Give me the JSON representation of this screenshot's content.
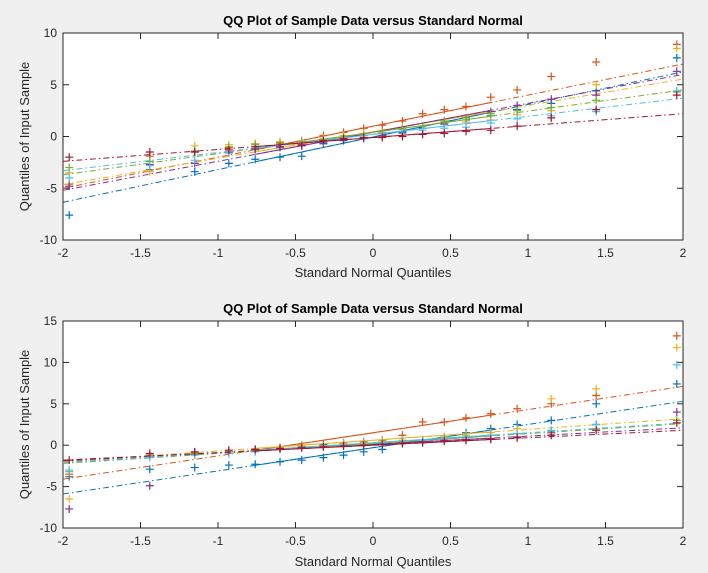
{
  "chart_data": [
    {
      "type": "scatter",
      "title": "QQ Plot of Sample Data versus Standard Normal",
      "xlabel": "Standard Normal Quantiles",
      "ylabel": "Quantiles of Input Sample",
      "xlim": [
        -2,
        2
      ],
      "ylim": [
        -10,
        10
      ],
      "xticks": [
        "-2",
        "-1.5",
        "-1",
        "-0.5",
        "0",
        "0.5",
        "1",
        "1.5",
        "2"
      ],
      "yticks": [
        "-10",
        "-5",
        "0",
        "5",
        "10"
      ],
      "x": [
        -1.96,
        -1.44,
        -1.15,
        -0.93,
        -0.76,
        -0.6,
        -0.46,
        -0.32,
        -0.19,
        -0.06,
        0.06,
        0.19,
        0.32,
        0.46,
        0.6,
        0.76,
        0.93,
        1.15,
        1.44,
        1.96
      ],
      "series": [
        {
          "color": "#0072BD",
          "values": [
            -7.6,
            -3.2,
            -3.4,
            -2.6,
            -2.2,
            -2.0,
            -1.9,
            -0.7,
            -0.4,
            -0.2,
            0.1,
            0.5,
            0.8,
            1.2,
            1.6,
            2.0,
            2.6,
            3.2,
            4.4,
            7.6
          ],
          "fit": [
            -0.05,
            3.15
          ]
        },
        {
          "color": "#D95319",
          "values": [
            -4.6,
            -1.9,
            -1.5,
            -1.1,
            -0.7,
            -0.6,
            -0.4,
            0.1,
            0.4,
            0.8,
            1.1,
            1.5,
            2.2,
            2.6,
            2.9,
            3.8,
            4.5,
            5.8,
            7.2,
            8.9
          ],
          "fit": [
            1.0,
            3.0
          ]
        },
        {
          "color": "#EDB120",
          "values": [
            -3.5,
            -3.4,
            -0.9,
            -0.8,
            -0.7,
            -0.5,
            -0.4,
            -0.2,
            0.1,
            0.3,
            0.4,
            0.9,
            1.0,
            1.3,
            1.4,
            1.6,
            2.1,
            2.5,
            5.0,
            8.5
          ],
          "fit": [
            0.45,
            2.55
          ]
        },
        {
          "color": "#7E2F8E",
          "values": [
            -4.8,
            -2.7,
            -2.6,
            -1.5,
            -1.0,
            -1.0,
            -0.8,
            -0.6,
            -0.3,
            -0.2,
            0.1,
            0.4,
            0.8,
            1.2,
            1.8,
            2.4,
            3.0,
            3.6,
            4.0,
            6.3
          ],
          "fit": [
            0.4,
            2.8
          ]
        },
        {
          "color": "#77AC30",
          "values": [
            -3.0,
            -2.4,
            -1.4,
            -1.0,
            -0.8,
            -0.7,
            -0.5,
            -0.4,
            -0.1,
            0.1,
            0.3,
            0.7,
            1.0,
            1.5,
            1.8,
            2.2,
            2.5,
            2.8,
            3.5,
            4.3
          ],
          "fit": [
            0.4,
            2.05
          ]
        },
        {
          "color": "#4DBEEE",
          "values": [
            -4.0,
            -2.8,
            -2.3,
            -1.6,
            -1.3,
            -1.1,
            -0.6,
            -0.5,
            -0.2,
            -0.2,
            0.0,
            0.3,
            0.6,
            0.8,
            0.9,
            1.3,
            1.7,
            2.0,
            2.4,
            4.4
          ],
          "fit": [
            0.2,
            1.75
          ]
        },
        {
          "color": "#A2142F",
          "values": [
            -2.0,
            -1.5,
            -1.5,
            -1.3,
            -1.2,
            -1.0,
            -0.9,
            -0.4,
            -0.2,
            -0.1,
            -0.1,
            0.0,
            0.2,
            0.3,
            0.5,
            0.6,
            1.0,
            1.8,
            2.6,
            4.0
          ],
          "fit": [
            -0.1,
            1.15
          ]
        }
      ]
    },
    {
      "type": "scatter",
      "title": "QQ Plot of Sample Data versus Standard Normal",
      "xlabel": "Standard Normal Quantiles",
      "ylabel": "Quantiles of Input Sample",
      "xlim": [
        -2,
        2
      ],
      "ylim": [
        -10,
        15
      ],
      "xticks": [
        "-2",
        "-1.5",
        "-1",
        "-0.5",
        "0",
        "0.5",
        "1",
        "1.5",
        "2"
      ],
      "yticks": [
        "-10",
        "-5",
        "0",
        "5",
        "10",
        "15"
      ],
      "x": [
        -1.96,
        -1.44,
        -1.15,
        -0.93,
        -0.76,
        -0.6,
        -0.46,
        -0.32,
        -0.19,
        -0.06,
        0.06,
        0.19,
        0.32,
        0.46,
        0.6,
        0.76,
        0.93,
        1.15,
        1.44,
        1.96
      ],
      "series": [
        {
          "color": "#0072BD",
          "values": [
            -3.8,
            -2.9,
            -2.7,
            -2.4,
            -2.3,
            -2.0,
            -1.8,
            -1.5,
            -1.2,
            -0.8,
            -0.5,
            0.2,
            0.5,
            1.0,
            1.5,
            2.0,
            2.5,
            3.0,
            5.0,
            7.4
          ],
          "fit": [
            -0.3,
            2.8
          ]
        },
        {
          "color": "#D95319",
          "values": [
            -3.5,
            -1.3,
            -0.9,
            -0.8,
            -0.6,
            -0.3,
            0.0,
            0.1,
            0.3,
            0.4,
            0.6,
            1.2,
            2.8,
            2.8,
            3.3,
            3.8,
            4.4,
            5.0,
            6.0,
            13.2
          ],
          "fit": [
            1.5,
            2.8
          ]
        },
        {
          "color": "#EDB120",
          "values": [
            -6.5,
            -1.2,
            -1.0,
            -0.8,
            -0.5,
            -0.3,
            -0.1,
            0.0,
            0.2,
            0.3,
            0.5,
            0.6,
            0.5,
            1.0,
            1.2,
            1.5,
            2.0,
            5.6,
            6.8,
            11.8
          ],
          "fit": [
            0.6,
            1.3
          ]
        },
        {
          "color": "#7E2F8E",
          "values": [
            -7.7,
            -4.9,
            -1.1,
            -0.8,
            -0.6,
            -0.4,
            -0.2,
            0.0,
            0.1,
            0.2,
            0.3,
            0.4,
            0.5,
            0.6,
            0.7,
            0.8,
            1.0,
            1.5,
            2.5,
            4.0
          ],
          "fit": [
            0.1,
            1.0
          ]
        },
        {
          "color": "#77AC30",
          "values": [
            -3.2,
            -1.2,
            -1.0,
            -0.8,
            -0.6,
            -0.4,
            -0.2,
            -0.1,
            0.1,
            0.2,
            0.3,
            0.5,
            0.6,
            0.8,
            1.0,
            1.2,
            1.4,
            1.7,
            2.0,
            3.0
          ],
          "fit": [
            0.2,
            1.2
          ]
        },
        {
          "color": "#4DBEEE",
          "values": [
            -3.0,
            -1.5,
            -1.2,
            -1.0,
            -0.8,
            -0.5,
            -0.3,
            -0.1,
            0.1,
            0.2,
            0.3,
            0.5,
            0.6,
            0.8,
            1.0,
            1.2,
            1.4,
            1.8,
            2.5,
            9.7
          ],
          "fit": [
            0.3,
            1.2
          ]
        },
        {
          "color": "#A2142F",
          "values": [
            -1.8,
            -1.0,
            -0.8,
            -0.6,
            -0.5,
            -0.4,
            -0.3,
            -0.2,
            -0.1,
            0.0,
            0.1,
            0.2,
            0.3,
            0.5,
            0.6,
            0.7,
            0.9,
            1.2,
            1.8,
            2.7
          ],
          "fit": [
            0.0,
            0.9
          ]
        }
      ]
    }
  ]
}
